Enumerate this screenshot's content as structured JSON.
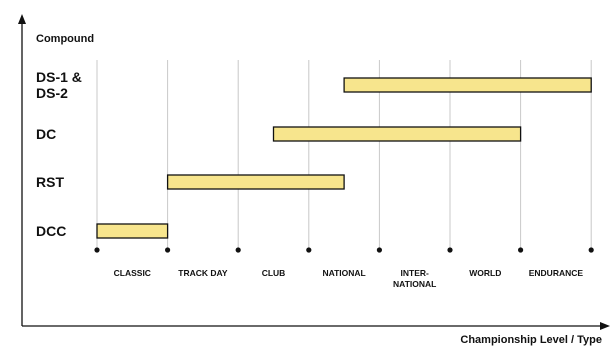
{
  "chart_data": {
    "type": "bar",
    "subtype": "floating-range",
    "ylabel": "Compound",
    "xlabel": "Championship Level / Type",
    "x_categories": [
      [
        "CLASSIC"
      ],
      [
        "TRACK DAY"
      ],
      [
        "CLUB"
      ],
      [
        "NATIONAL"
      ],
      [
        "INTER-",
        "NATIONAL"
      ],
      [
        "WORLD"
      ],
      [
        "ENDURANCE"
      ]
    ],
    "y_categories": [
      [
        "DS-1 &",
        "DS-2"
      ],
      [
        "DC"
      ],
      [
        "RST"
      ],
      [
        "DCC"
      ]
    ],
    "ranges": [
      {
        "category_index": 0,
        "start": 3.5,
        "end": 7
      },
      {
        "category_index": 1,
        "start": 2.5,
        "end": 6
      },
      {
        "category_index": 2,
        "start": 1,
        "end": 3.5
      },
      {
        "category_index": 3,
        "start": 0,
        "end": 1
      }
    ],
    "grid": "vertical",
    "colors": {
      "bar_fill": "#f7e58d",
      "bar_stroke": "#111111",
      "grid": "#c8c8c8",
      "axis": "#111111",
      "background": "#ffffff"
    }
  }
}
